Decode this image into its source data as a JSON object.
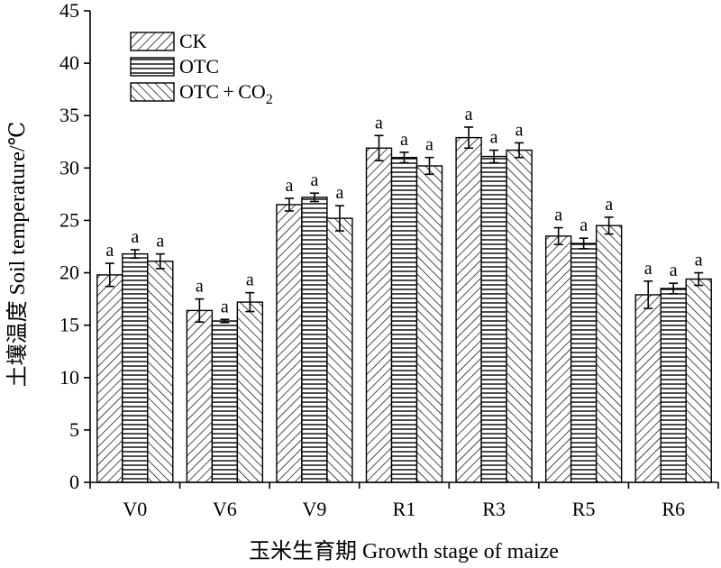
{
  "chart_data": {
    "type": "bar",
    "categories": [
      "V0",
      "V6",
      "V9",
      "R1",
      "R3",
      "R5",
      "R6"
    ],
    "series": [
      {
        "name": "CK",
        "values": [
          19.8,
          16.4,
          26.5,
          31.9,
          32.9,
          23.5,
          17.9
        ],
        "errors": [
          1.1,
          1.1,
          0.6,
          1.2,
          1.0,
          0.8,
          1.3
        ],
        "pattern": "diag-right"
      },
      {
        "name": "OTC",
        "values": [
          21.8,
          15.4,
          27.2,
          31.0,
          31.1,
          22.8,
          18.5
        ],
        "errors": [
          0.4,
          0.15,
          0.4,
          0.5,
          0.6,
          0.5,
          0.5
        ],
        "pattern": "horizontal"
      },
      {
        "name": "OTC+CO2",
        "values": [
          21.1,
          17.2,
          25.2,
          30.2,
          31.7,
          24.5,
          19.4
        ],
        "errors": [
          0.7,
          0.9,
          1.2,
          0.8,
          0.7,
          0.8,
          0.6
        ],
        "pattern": "diag-left"
      }
    ],
    "significance": [
      [
        "a",
        "a",
        "a"
      ],
      [
        "a",
        "a",
        "a"
      ],
      [
        "a",
        "a",
        "a"
      ],
      [
        "a",
        "a",
        "a"
      ],
      [
        "a",
        "a",
        "a"
      ],
      [
        "a",
        "a",
        "a"
      ],
      [
        "a",
        "a",
        "a"
      ]
    ],
    "legend": {
      "items": [
        "CK",
        "OTC"
      ],
      "item3": {
        "main": "OTC + CO",
        "sub": "2"
      },
      "placement": "top-left"
    },
    "xlabel": "玉米生育期 Growth stage of maize",
    "ylabel": "土壤温度 Soil temperature/℃",
    "ylim": [
      0,
      45
    ],
    "yticks": [
      0,
      5,
      10,
      15,
      20,
      25,
      30,
      35,
      40,
      45
    ],
    "grid": false,
    "colors": {
      "bar_fill": "#ffffff",
      "hatch": "#000000",
      "axis": "#000000"
    }
  }
}
